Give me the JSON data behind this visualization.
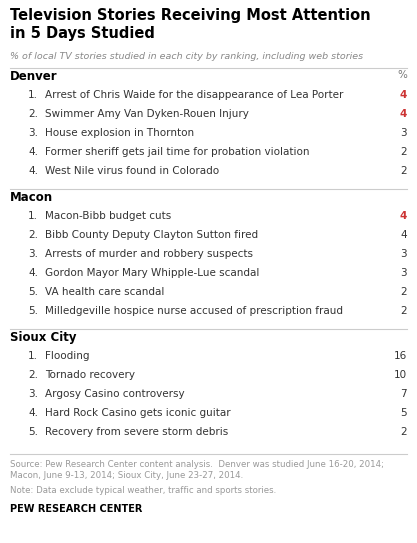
{
  "title": "Television Stories Receiving Most Attention\nin 5 Days Studied",
  "subtitle": "% of local TV stories studied in each city by ranking, including web stories",
  "sections": [
    {
      "city": "Denver",
      "percent_label": "%",
      "items": [
        {
          "rank": "1.",
          "text": "Arrest of Chris Waide for the disappearance of Lea Porter",
          "value": "4",
          "bold": true
        },
        {
          "rank": "2.",
          "text": "Swimmer Amy Van Dyken-Rouen Injury",
          "value": "4",
          "bold": true
        },
        {
          "rank": "3.",
          "text": "House explosion in Thornton",
          "value": "3",
          "bold": false
        },
        {
          "rank": "4.",
          "text": "Former sheriff gets jail time for probation violation",
          "value": "2",
          "bold": false
        },
        {
          "rank": "4.",
          "text": "West Nile virus found in Colorado",
          "value": "2",
          "bold": false
        }
      ]
    },
    {
      "city": "Macon",
      "percent_label": null,
      "items": [
        {
          "rank": "1.",
          "text": "Macon-Bibb budget cuts",
          "value": "4",
          "bold": true
        },
        {
          "rank": "2.",
          "text": "Bibb County Deputy Clayton Sutton fired",
          "value": "4",
          "bold": false
        },
        {
          "rank": "3.",
          "text": "Arrests of murder and robbery suspects",
          "value": "3",
          "bold": false
        },
        {
          "rank": "4.",
          "text": "Gordon Mayor Mary Whipple-Lue scandal",
          "value": "3",
          "bold": false
        },
        {
          "rank": "5.",
          "text": "VA health care scandal",
          "value": "2",
          "bold": false
        },
        {
          "rank": "5.",
          "text": "Milledgeville hospice nurse accused of prescription fraud",
          "value": "2",
          "bold": false
        }
      ]
    },
    {
      "city": "Sioux City",
      "percent_label": null,
      "items": [
        {
          "rank": "1.",
          "text": "Flooding",
          "value": "16",
          "bold": false
        },
        {
          "rank": "2.",
          "text": "Tornado recovery",
          "value": "10",
          "bold": false
        },
        {
          "rank": "3.",
          "text": "Argosy Casino controversy",
          "value": "7",
          "bold": false
        },
        {
          "rank": "4.",
          "text": "Hard Rock Casino gets iconic guitar",
          "value": "5",
          "bold": false
        },
        {
          "rank": "5.",
          "text": "Recovery from severe storm debris",
          "value": "2",
          "bold": false
        }
      ]
    }
  ],
  "source_text": "Source: Pew Research Center content analysis.  Denver was studied June 16-20, 2014;\nMacon, June 9-13, 2014; Sioux City, June 23-27, 2014.",
  "note_text": "Note: Data exclude typical weather, traffic and sports stories.",
  "footer": "PEW RESEARCH CENTER",
  "bg_color": "#ffffff",
  "title_color": "#000000",
  "subtitle_color": "#888888",
  "city_color": "#000000",
  "item_color": "#333333",
  "value_color_bold": "#cc3333",
  "value_color_normal": "#333333",
  "source_color": "#999999",
  "line_color": "#cccccc",
  "title_fontsize": 10.5,
  "subtitle_fontsize": 6.8,
  "city_fontsize": 8.5,
  "item_fontsize": 7.5,
  "source_fontsize": 6.2,
  "footer_fontsize": 7.0
}
